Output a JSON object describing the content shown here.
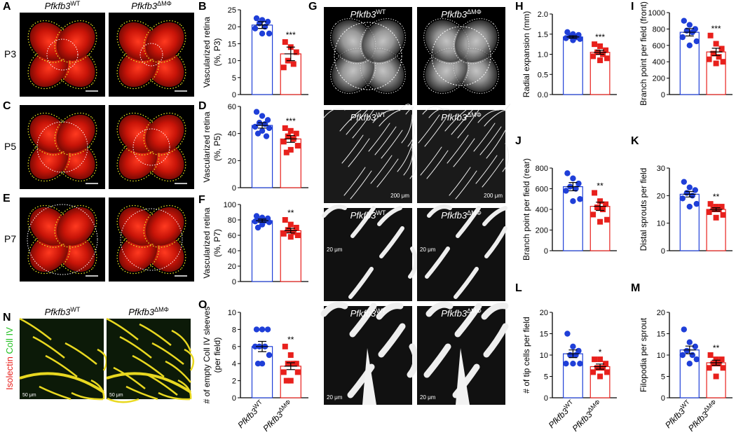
{
  "panel_letters": [
    "A",
    "B",
    "C",
    "D",
    "E",
    "F",
    "G",
    "H",
    "I",
    "J",
    "K",
    "L",
    "M",
    "N",
    "O"
  ],
  "ages": [
    "P3",
    "P5",
    "P7"
  ],
  "genotypes": [
    [
      "Pfkfb3",
      "WT"
    ],
    [
      "Pfkfb3",
      "ΔMΦ"
    ]
  ],
  "stain_labels": [
    "Isolectin",
    "Coll IV"
  ],
  "scale_bars": [
    "200 μm",
    "20 μm",
    "50 μm"
  ],
  "chart_data": [
    {
      "type": "bar",
      "ylabel": [
        "Vascularized retina",
        "(%, P3)"
      ],
      "categories": [
        null,
        null
      ],
      "colors": [
        "#1f3fd8",
        "#e8201c"
      ],
      "values": [
        20.5,
        12
      ],
      "errors": [
        1,
        2
      ],
      "points": [
        [
          22.5,
          22,
          21.5,
          21,
          20,
          19.5,
          18,
          18
        ],
        [
          15.5,
          14,
          12.5,
          10,
          9,
          8
        ]
      ],
      "ylim": [
        0,
        25
      ],
      "yticks": [
        0,
        5,
        10,
        15,
        20,
        25
      ],
      "significance": "***"
    },
    {
      "type": "bar",
      "ylabel": [
        "Vascularized retina",
        "(%, P5)"
      ],
      "categories": [
        null,
        null
      ],
      "colors": [
        "#1f3fd8",
        "#e8201c"
      ],
      "values": [
        46,
        36
      ],
      "errors": [
        2,
        2.5
      ],
      "points": [
        [
          56,
          53,
          50,
          48,
          47,
          45,
          44,
          42,
          40,
          38
        ],
        [
          44,
          42,
          40,
          38,
          36,
          34,
          31,
          28,
          26
        ]
      ],
      "ylim": [
        0,
        60
      ],
      "yticks": [
        0,
        20,
        40,
        60
      ],
      "significance": "***"
    },
    {
      "type": "bar",
      "ylabel": [
        "Vascularized retina",
        "(%, P7)"
      ],
      "categories": [
        null,
        null
      ],
      "colors": [
        "#1f3fd8",
        "#e8201c"
      ],
      "values": [
        79,
        66
      ],
      "errors": [
        2,
        3
      ],
      "points": [
        [
          85,
          83,
          82,
          80,
          79,
          78,
          77,
          74,
          70
        ],
        [
          80,
          74,
          70,
          67,
          64,
          62,
          60,
          58
        ]
      ],
      "ylim": [
        0,
        100
      ],
      "yticks": [
        0,
        20,
        40,
        60,
        80,
        100
      ],
      "significance": "**"
    },
    {
      "type": "bar",
      "ylabel": [
        "# of empty Coll IV sleeves",
        "(per field)"
      ],
      "categories": [
        [
          "Pfkfb3",
          "WT"
        ],
        [
          "Pfkfb3",
          "ΔMΦ"
        ]
      ],
      "colors": [
        "#1f3fd8",
        "#e8201c"
      ],
      "values": [
        6,
        3.7
      ],
      "errors": [
        0.6,
        0.4
      ],
      "points": [
        [
          8,
          8,
          8,
          6,
          6,
          6,
          5,
          4,
          4
        ],
        [
          6,
          5,
          4,
          4,
          4,
          3,
          3,
          2,
          2
        ]
      ],
      "ylim": [
        0,
        10
      ],
      "yticks": [
        0,
        2,
        4,
        6,
        8,
        10
      ],
      "significance": "**"
    },
    {
      "type": "bar",
      "ylabel": [
        "Radial expansion (mm)"
      ],
      "categories": [
        null,
        null
      ],
      "colors": [
        "#1f3fd8",
        "#e8201c"
      ],
      "values": [
        1.43,
        1.05
      ],
      "errors": [
        0.03,
        0.05
      ],
      "points": [
        [
          1.55,
          1.5,
          1.48,
          1.45,
          1.42,
          1.4,
          1.38,
          1.35
        ],
        [
          1.25,
          1.2,
          1.1,
          1.05,
          1.0,
          0.95,
          0.9,
          0.85
        ]
      ],
      "ylim": [
        0,
        2
      ],
      "yticks": [
        {
          "value": 0,
          "label": "0.0"
        },
        0.5,
        {
          "value": 1,
          "label": "1.0"
        },
        1.5,
        {
          "value": 2,
          "label": "2.0"
        }
      ],
      "significance": "***"
    },
    {
      "type": "bar",
      "ylabel": [
        "Branch point per field (front)"
      ],
      "categories": [
        null,
        null
      ],
      "colors": [
        "#1f3fd8",
        "#e8201c"
      ],
      "values": [
        760,
        520
      ],
      "errors": [
        45,
        45
      ],
      "points": [
        [
          900,
          850,
          800,
          780,
          760,
          700,
          650,
          600
        ],
        [
          720,
          620,
          560,
          500,
          460,
          430,
          400,
          380
        ]
      ],
      "ylim": [
        0,
        1000
      ],
      "yticks": [
        0,
        200,
        400,
        600,
        800,
        1000
      ],
      "significance": "***"
    },
    {
      "type": "bar",
      "ylabel": [
        "Branch point per field (rear)"
      ],
      "categories": [
        null,
        null
      ],
      "colors": [
        "#1f3fd8",
        "#e8201c"
      ],
      "values": [
        620,
        430
      ],
      "errors": [
        40,
        40
      ],
      "points": [
        [
          750,
          700,
          650,
          620,
          600,
          580,
          500,
          480
        ],
        [
          560,
          480,
          450,
          420,
          400,
          350,
          300,
          280
        ]
      ],
      "ylim": [
        0,
        800
      ],
      "yticks": [
        0,
        200,
        400,
        600,
        800
      ],
      "significance": "**"
    },
    {
      "type": "bar",
      "ylabel": [
        "Distal sprouts per field"
      ],
      "categories": [
        null,
        null
      ],
      "colors": [
        "#1f3fd8",
        "#e8201c"
      ],
      "values": [
        20.5,
        15
      ],
      "errors": [
        1,
        0.6
      ],
      "points": [
        [
          25,
          23,
          22,
          21,
          20,
          19,
          17,
          16
        ],
        [
          17,
          16,
          16,
          15,
          15,
          14,
          13,
          12
        ]
      ],
      "ylim": [
        0,
        30
      ],
      "yticks": [
        0,
        10,
        20,
        30
      ],
      "significance": "**"
    },
    {
      "type": "bar",
      "ylabel": [
        "# of tip cells per field"
      ],
      "categories": [
        [
          "Pfkfb3",
          "WT"
        ],
        [
          "Pfkfb3",
          "ΔMΦ"
        ]
      ],
      "colors": [
        "#1f3fd8",
        "#e8201c"
      ],
      "values": [
        10.3,
        7.3
      ],
      "errors": [
        0.9,
        0.6
      ],
      "points": [
        [
          15,
          12,
          11,
          10,
          10,
          8,
          8,
          8
        ],
        [
          9,
          9,
          8,
          7,
          7,
          6,
          6,
          5
        ]
      ],
      "ylim": [
        0,
        20
      ],
      "yticks": [
        0,
        5,
        10,
        15,
        20
      ],
      "significance": "*"
    },
    {
      "type": "bar",
      "ylabel": [
        "Filopodia per sprout"
      ],
      "categories": [
        [
          "Pfkfb3",
          "WT"
        ],
        [
          "Pfkfb3",
          "ΔMΦ"
        ]
      ],
      "colors": [
        "#1f3fd8",
        "#e8201c"
      ],
      "values": [
        11.2,
        8.2
      ],
      "errors": [
        0.9,
        0.6
      ],
      "points": [
        [
          16,
          13,
          12,
          11,
          10,
          10,
          9,
          8
        ],
        [
          10,
          9,
          9,
          8,
          8,
          7,
          7,
          5
        ]
      ],
      "ylim": [
        0,
        20
      ],
      "yticks": [
        0,
        5,
        10,
        15,
        20
      ],
      "significance": "**"
    }
  ]
}
